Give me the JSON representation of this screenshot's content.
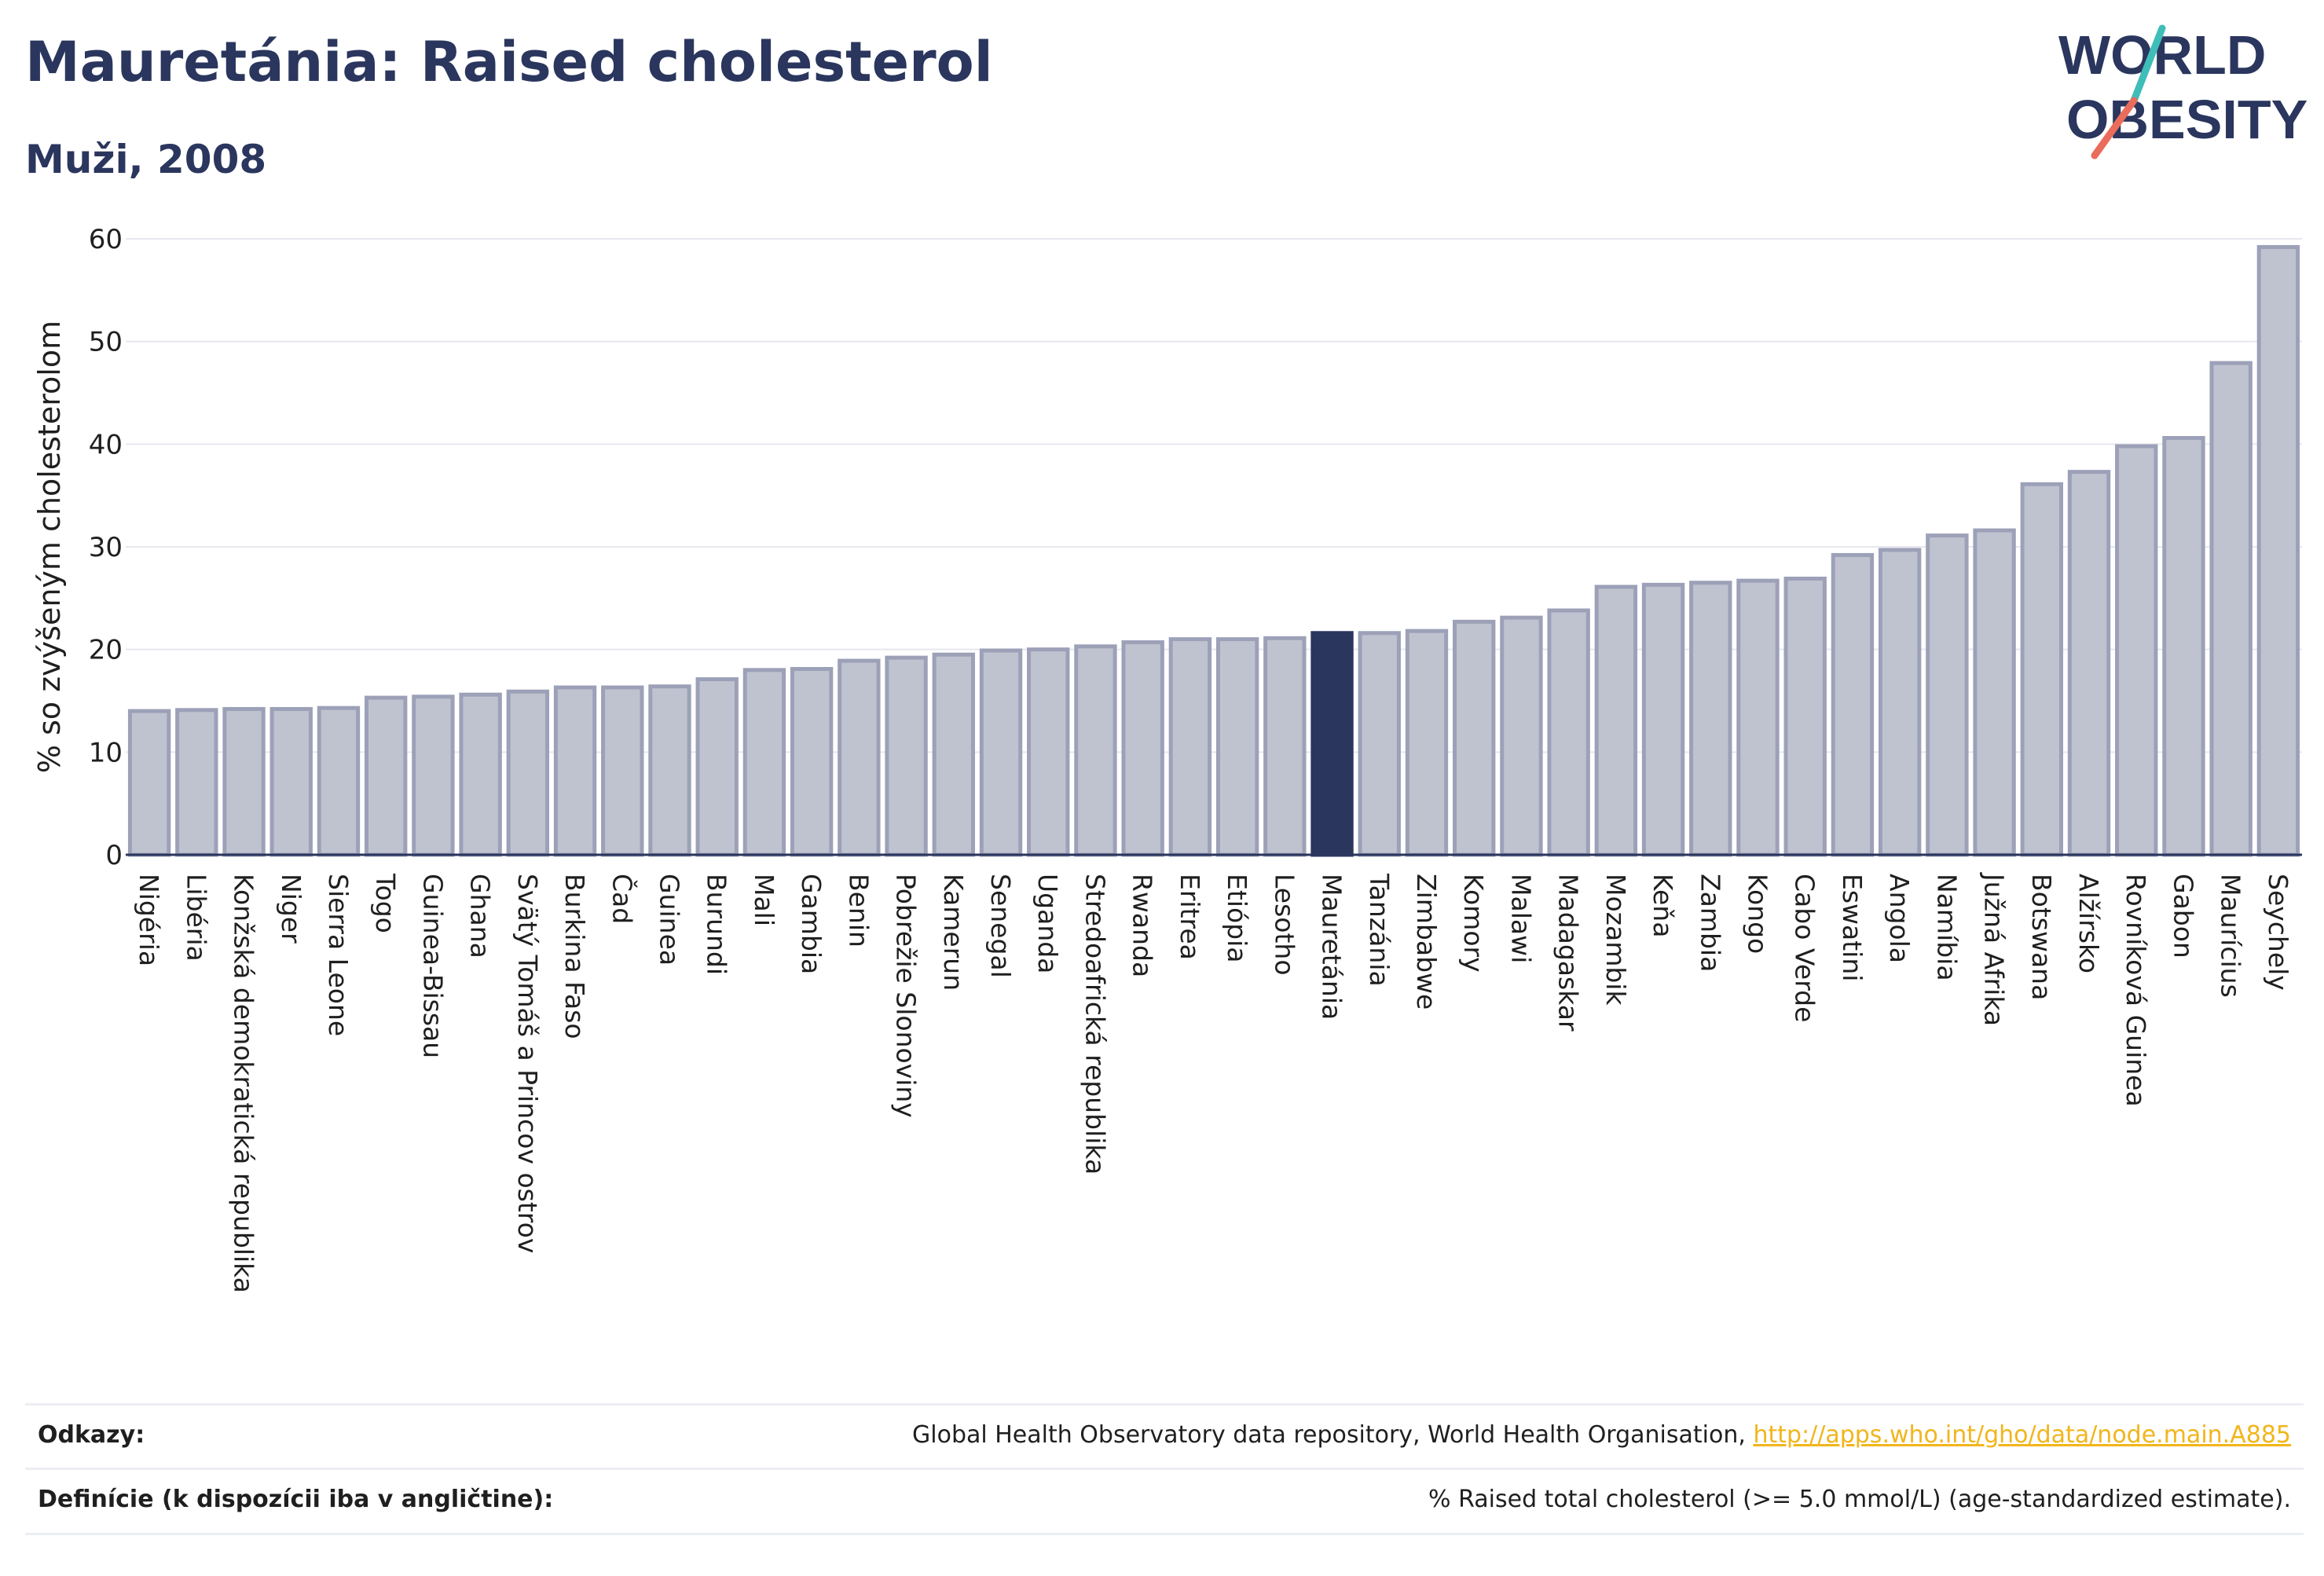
{
  "title": "Mauretánia: Raised cholesterol",
  "subtitle": "Muži, 2008",
  "logo": {
    "line1": "WORLD",
    "line2": "OBESITY"
  },
  "colors": {
    "title": "#2b365e",
    "bar": "#bfc3d0",
    "bar_stroke": "#9ca1b8",
    "highlight": "#2b365e",
    "grid": "#e6e8ef",
    "axis": "#2b365e",
    "link": "#f2b51b",
    "logo_teal": "#3fbdb9",
    "logo_coral": "#ea6c5b"
  },
  "chart_data": {
    "type": "bar",
    "ylabel": "% so zvýšeným cholesterolom",
    "ylim": [
      0,
      60
    ],
    "yticks": [
      0,
      10,
      20,
      30,
      40,
      50,
      60
    ],
    "grid": true,
    "highlight": "Mauretánia",
    "categories": [
      "Nigéria",
      "Libéria",
      "Konžská demokratická republika",
      "Niger",
      "Sierra Leone",
      "Togo",
      "Guinea-Bissau",
      "Ghana",
      "Svätý Tomáš a Princov ostrov",
      "Burkina Faso",
      "Čad",
      "Guinea",
      "Burundi",
      "Mali",
      "Gambia",
      "Benin",
      "Pobrežie Slonoviny",
      "Kamerun",
      "Senegal",
      "Uganda",
      "Stredoafrická republika",
      "Rwanda",
      "Eritrea",
      "Etiópia",
      "Lesotho",
      "Mauretánia",
      "Tanzánia",
      "Zimbabwe",
      "Komory",
      "Malawi",
      "Madagaskar",
      "Mozambik",
      "Keňa",
      "Zambia",
      "Kongo",
      "Cabo Verde",
      "Eswatini",
      "Angola",
      "Namíbia",
      "Južná Afrika",
      "Botswana",
      "Alžírsko",
      "Rovníková Guinea",
      "Gabon",
      "Maurícius",
      "Seychely"
    ],
    "values": [
      14.0,
      14.1,
      14.2,
      14.2,
      14.3,
      15.3,
      15.4,
      15.6,
      15.9,
      16.3,
      16.3,
      16.4,
      17.1,
      18.0,
      18.1,
      18.9,
      19.2,
      19.5,
      19.9,
      20.0,
      20.3,
      20.7,
      21.0,
      21.0,
      21.1,
      21.6,
      21.6,
      21.8,
      22.7,
      23.1,
      23.8,
      26.1,
      26.3,
      26.5,
      26.7,
      26.9,
      29.2,
      29.7,
      31.1,
      31.6,
      36.1,
      37.3,
      39.8,
      40.6,
      47.9,
      59.2
    ]
  },
  "references": {
    "sources_label": "Odkazy:",
    "sources_text": "Global Health Observatory data repository, World Health Organisation, ",
    "sources_link": "http://apps.who.int/gho/data/node.main.A885",
    "definitions_label": "Definície (k dispozícii iba v angličtine):",
    "definitions_text": "% Raised total cholesterol (>= 5.0 mmol/L) (age-standardized estimate)."
  }
}
